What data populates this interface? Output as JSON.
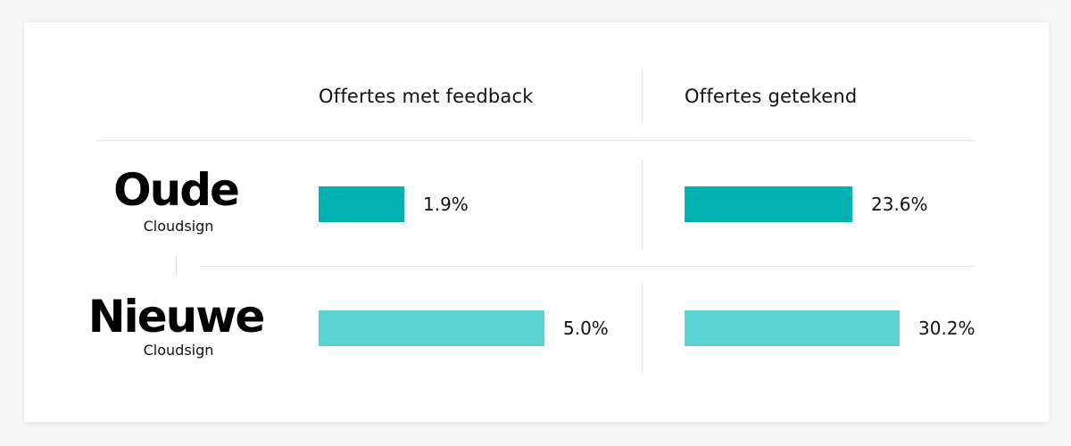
{
  "chart_data": {
    "type": "bar",
    "orientation": "horizontal",
    "columns": [
      "Offertes met feedback",
      "Offertes getekend"
    ],
    "rows": [
      {
        "title": "Oude",
        "subtitle": "Cloudsign",
        "values": [
          1.9,
          23.6
        ],
        "labels": [
          "1.9%",
          "23.6%"
        ],
        "color": "#00b2b2"
      },
      {
        "title": "Nieuwe",
        "subtitle": "Cloudsign",
        "values": [
          5.0,
          30.2
        ],
        "labels": [
          "5.0%",
          "30.2%"
        ],
        "color": "#5ad4d2"
      }
    ]
  }
}
